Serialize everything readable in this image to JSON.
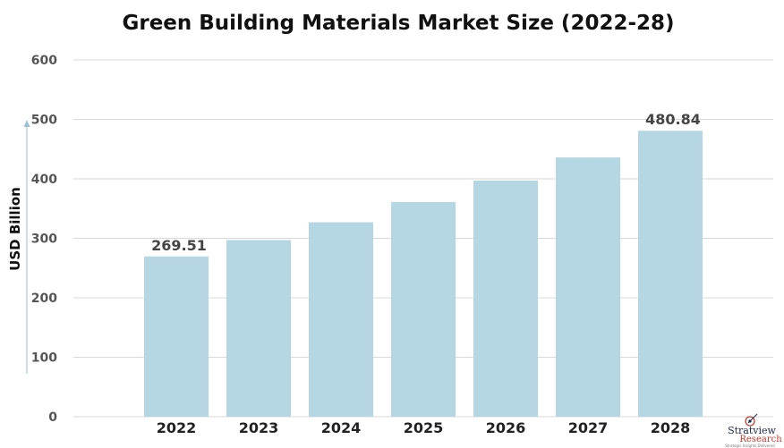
{
  "chart_data": {
    "type": "bar",
    "title": "Green Building Materials Market Size (2022-28)",
    "xlabel": "",
    "ylabel": "USD Billion",
    "categories": [
      "2022",
      "2023",
      "2024",
      "2025",
      "2026",
      "2027",
      "2028"
    ],
    "values": [
      269.51,
      297,
      327,
      361,
      397,
      436,
      480.84
    ],
    "data_labels": [
      "269.51",
      "",
      "",
      "",
      "",
      "",
      "480.84"
    ],
    "ylim": [
      0,
      600
    ],
    "yticks": [
      0,
      100,
      200,
      300,
      400,
      500,
      600
    ],
    "bar_color": "#b5d6e3",
    "grid": true,
    "legend": "none"
  },
  "watermark": {
    "line1": "Stratview",
    "line2": "Research",
    "tagline": "Strategic Insights Delivered"
  }
}
